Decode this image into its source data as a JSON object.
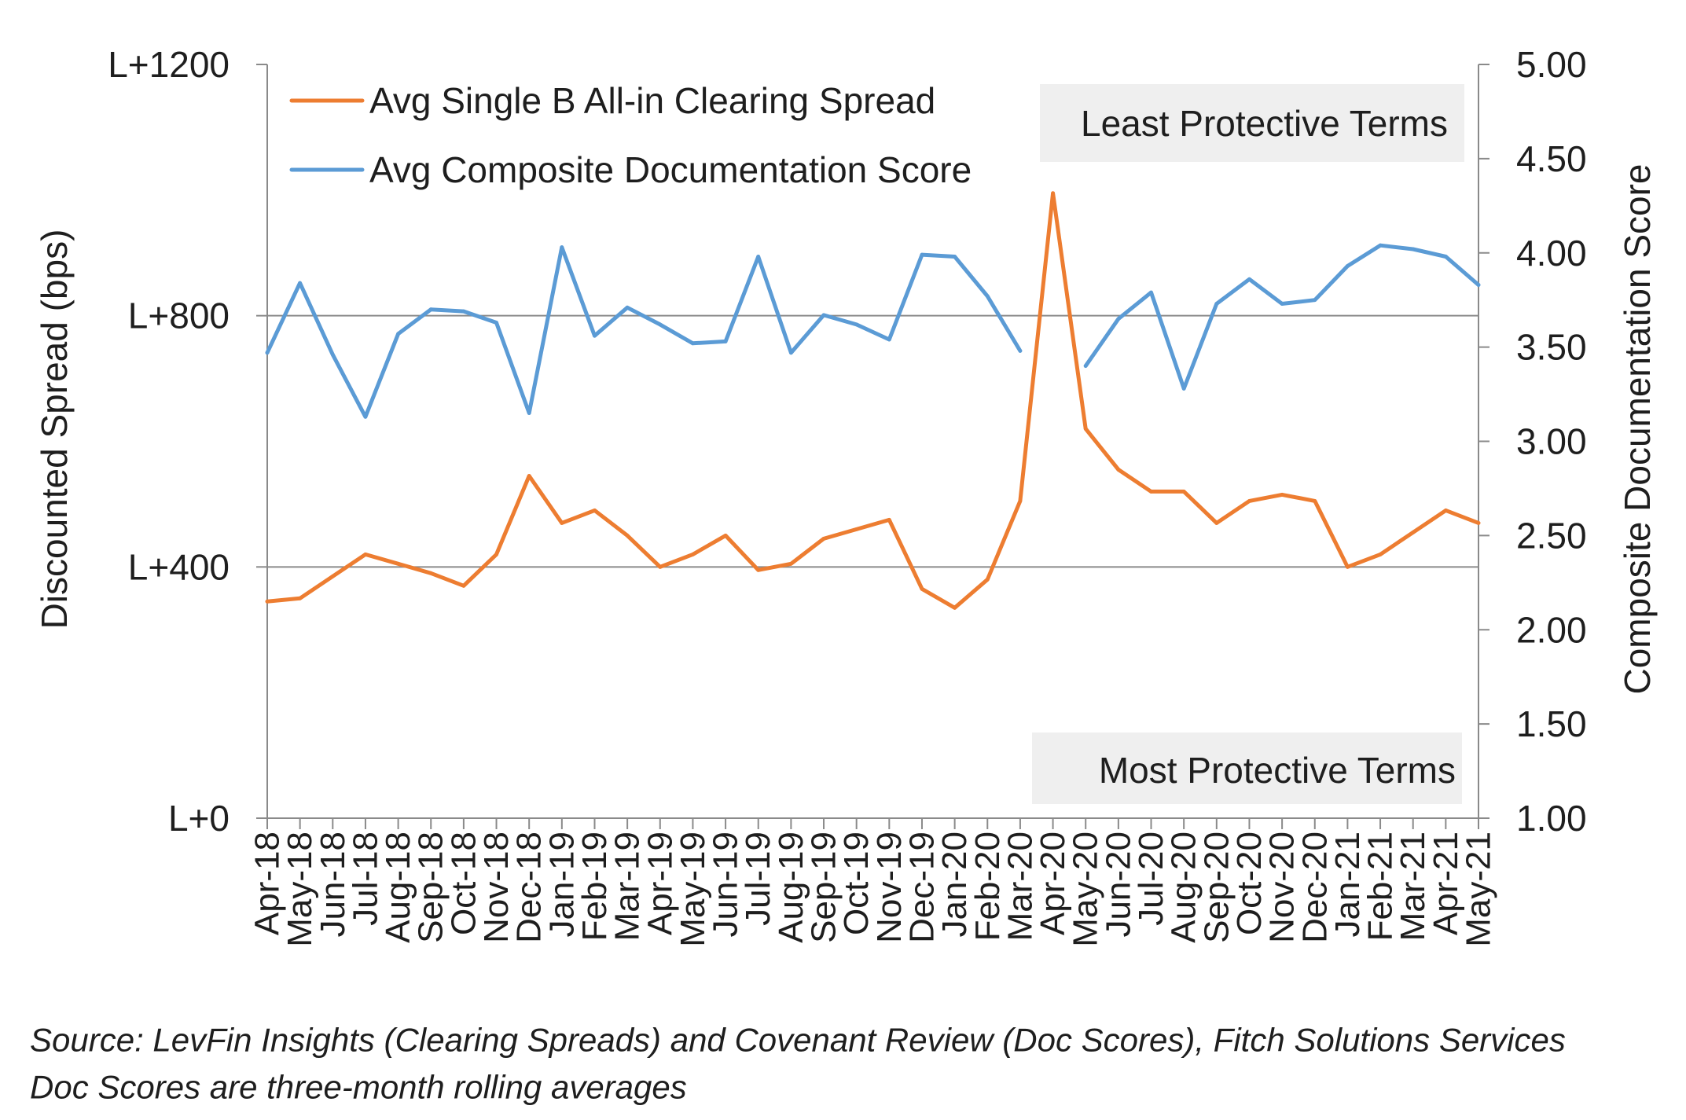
{
  "chart_data": {
    "type": "line",
    "categories": [
      "Apr-18",
      "May-18",
      "Jun-18",
      "Jul-18",
      "Aug-18",
      "Sep-18",
      "Oct-18",
      "Nov-18",
      "Dec-18",
      "Jan-19",
      "Feb-19",
      "Mar-19",
      "Apr-19",
      "May-19",
      "Jun-19",
      "Jul-19",
      "Aug-19",
      "Sep-19",
      "Oct-19",
      "Nov-19",
      "Dec-19",
      "Jan-20",
      "Feb-20",
      "Mar-20",
      "Apr-20",
      "May-20",
      "Jun-20",
      "Jul-20",
      "Aug-20",
      "Sep-20",
      "Oct-20",
      "Nov-20",
      "Dec-20",
      "Jan-21",
      "Feb-21",
      "Mar-21",
      "Apr-21",
      "May-21"
    ],
    "series": [
      {
        "name": "Avg Single B All-in Clearing Spread",
        "y_axis": 1,
        "color": "#ED7D31",
        "values": [
          345,
          350,
          385,
          420,
          405,
          390,
          370,
          420,
          545,
          470,
          490,
          450,
          400,
          420,
          450,
          395,
          405,
          445,
          460,
          475,
          365,
          335,
          380,
          505,
          995,
          620,
          555,
          520,
          520,
          470,
          505,
          515,
          505,
          400,
          420,
          455,
          490,
          470
        ]
      },
      {
        "name": "Avg Composite Documentation Score",
        "y_axis": 2,
        "color": "#5B9BD5",
        "values": [
          3.47,
          3.84,
          3.46,
          3.13,
          3.57,
          3.7,
          3.69,
          3.63,
          3.15,
          4.03,
          3.56,
          3.71,
          3.62,
          3.52,
          3.53,
          3.98,
          3.47,
          3.67,
          3.62,
          3.54,
          3.99,
          3.98,
          3.77,
          3.48,
          null,
          3.4,
          3.65,
          3.79,
          3.28,
          3.73,
          3.86,
          3.73,
          3.75,
          3.93,
          4.04,
          4.02,
          3.98,
          3.83
        ]
      }
    ],
    "ylabel": "Discounted Spread (bps)",
    "y2label": "Composite Documentation Score",
    "ylim": [
      0,
      1200
    ],
    "yticks": [
      0,
      400,
      800,
      1200
    ],
    "ytick_labels": [
      "L+0",
      "L+400",
      "L+800",
      "L+1200"
    ],
    "y2lim": [
      1,
      5
    ],
    "y2ticks": [
      1,
      1.5,
      2,
      2.5,
      3,
      3.5,
      4,
      4.5,
      5
    ],
    "y2tick_labels": [
      "1.00",
      "1.50",
      "2.00",
      "2.50",
      "3.00",
      "3.50",
      "4.00",
      "4.50",
      "5.00"
    ],
    "grid": true,
    "legend_position": "top-left",
    "annotations": [
      "Least Protective Terms",
      "Most Protective Terms"
    ]
  },
  "source_note": [
    "Source: LevFin Insights (Clearing Spreads) and Covenant Review (Doc Scores), Fitch Solutions Services",
    "Doc Scores are three-month rolling averages"
  ]
}
